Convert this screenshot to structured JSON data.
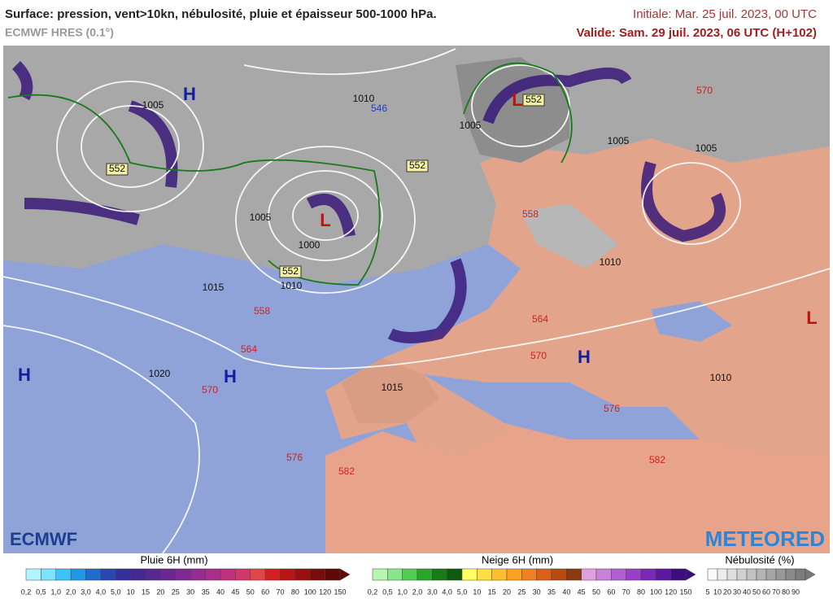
{
  "header": {
    "title": "Surface: pression, vent>10kn, nébulosité, pluie et épaisseur 500-1000 hPa.",
    "model": "ECMWF HRES (0.1°)",
    "initial": "Initiale: Mar. 25 juil. 2023, 00 UTC",
    "valid": "Valide: Sam. 29 juil. 2023, 06 UTC (H+102)"
  },
  "map": {
    "pressure_centers": [
      "H",
      "H",
      "H",
      "H",
      "L",
      "L",
      "L"
    ],
    "contour_labels": [
      "1010",
      "546",
      "1005",
      "552",
      "552",
      "552",
      "552",
      "1005",
      "1005",
      "1005",
      "570",
      "1005",
      "1000",
      "1010",
      "1015",
      "558",
      "558",
      "564",
      "564",
      "570",
      "1010",
      "1020",
      "570",
      "1015",
      "1010",
      "576",
      "576",
      "582",
      "582"
    ],
    "logos": [
      "ECMWF",
      "METEORED"
    ]
  },
  "legend": {
    "rain": {
      "title": "Pluie 6H (mm)",
      "labels": [
        "0,2",
        "0,5",
        "1,0",
        "2,0",
        "3,0",
        "4,0",
        "5,0",
        "10",
        "15",
        "20",
        "25",
        "30",
        "35",
        "40",
        "45",
        "50",
        "60",
        "70",
        "80",
        "100",
        "120",
        "150"
      ]
    },
    "snow": {
      "title": "Neige 6H (mm)",
      "labels": [
        "0,2",
        "0,5",
        "1,0",
        "2,0",
        "3,0",
        "4,0",
        "5,0",
        "10",
        "15",
        "20",
        "25",
        "30",
        "35",
        "40",
        "45",
        "50",
        "60",
        "70",
        "80",
        "100",
        "120",
        "150"
      ]
    },
    "cloud": {
      "title": "Nébulosité (%)",
      "labels": [
        "5",
        "10",
        "20",
        "30",
        "40",
        "50",
        "60",
        "70",
        "80",
        "90"
      ]
    }
  }
}
